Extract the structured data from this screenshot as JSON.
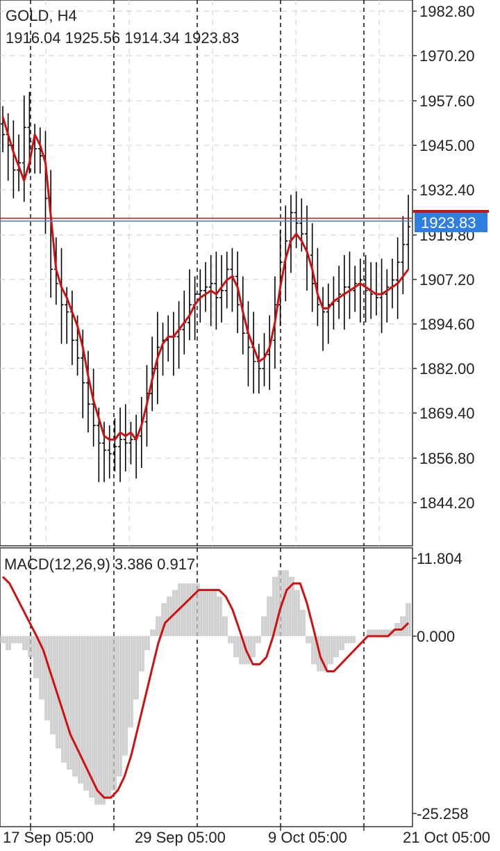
{
  "symbol": "GOLD, H4",
  "ohlc": "1916.04 1925.56 1914.34 1923.83",
  "price_axis": [
    "1982.80",
    "1970.20",
    "1957.60",
    "1945.00",
    "1932.40",
    "1919.80",
    "1907.20",
    "1894.60",
    "1882.00",
    "1869.40",
    "1856.80",
    "1844.20"
  ],
  "current_price": "1923.83",
  "macd": {
    "label": "MACD(12,26,9) 3.386 0.917",
    "axis": [
      "11.804",
      "0.000",
      "-25.258"
    ]
  },
  "time_axis": [
    "17 Sep 05:00",
    "29 Sep 05:00",
    "9 Oct 05:00",
    "21 Oct 05:00"
  ],
  "colors": {
    "bars": "#000000",
    "ma": "#d01010",
    "grid": "#cfcfcf",
    "bid_line": "#3b7fd6",
    "ask_line": "#c01818",
    "price_tag_bg": "#2f7fe0",
    "histogram": "#c4c4c4",
    "signal": "#d01010"
  },
  "chart_data": [
    {
      "type": "line",
      "title": "GOLD, H4",
      "y_range": [
        1840,
        1985
      ],
      "series": [
        {
          "values": [
            1953,
            1948,
            1943,
            1939,
            1935,
            1940,
            1948,
            1945,
            1940,
            1925,
            1910,
            1905,
            1902,
            1898,
            1894,
            1888,
            1880,
            1873,
            1868,
            1863,
            1862,
            1862,
            1864,
            1863,
            1864,
            1862,
            1866,
            1872,
            1879,
            1885,
            1889,
            1891,
            1891,
            1893,
            1895,
            1897,
            1900,
            1902,
            1903,
            1904,
            1903,
            1905,
            1907,
            1908,
            1905,
            1898,
            1892,
            1888,
            1884,
            1885,
            1888,
            1895,
            1905,
            1913,
            1918,
            1920,
            1918,
            1915,
            1910,
            1903,
            1899,
            1899,
            1901,
            1902,
            1903,
            1904,
            1905,
            1906,
            1905,
            1904,
            1903,
            1903,
            1904,
            1905,
            1906,
            1908,
            1910
          ]
        },
        {
          "values": [
            1948,
            1945,
            1938,
            1940,
            1950,
            1946,
            1944,
            1942,
            1930,
            1910,
            1906,
            1900,
            1898,
            1890,
            1885,
            1878,
            1872,
            1866,
            1861,
            1859,
            1858,
            1860,
            1862,
            1861,
            1862,
            1863,
            1867,
            1875,
            1882,
            1888,
            1890,
            1891,
            1891,
            1893,
            1895,
            1900,
            1903,
            1904,
            1905,
            1906,
            1902,
            1904,
            1910,
            1908,
            1900,
            1892,
            1888,
            1884,
            1882,
            1886,
            1890,
            1900,
            1912,
            1918,
            1926,
            1923,
            1920,
            1914,
            1906,
            1900,
            1898,
            1900,
            1901,
            1903,
            1905,
            1904,
            1906,
            1907,
            1904,
            1903,
            1902,
            1903,
            1905,
            1907,
            1912,
            1917,
            1922
          ]
        }
      ]
    },
    {
      "type": "bar",
      "title": "MACD(12,26,9) 3.386 0.917",
      "y_range": [
        -25.258,
        11.804
      ],
      "histogram": [
        -1,
        -2,
        -1,
        -1,
        -2,
        -3,
        -6,
        -9,
        -12,
        -14,
        -16,
        -18,
        -19,
        -20,
        -21,
        -22,
        -23,
        -24,
        -24,
        -23,
        -22,
        -20,
        -17,
        -13,
        -9,
        -5,
        -2,
        1,
        3,
        5,
        6,
        7,
        8,
        8,
        8,
        8,
        7,
        7,
        7,
        6,
        3,
        -1,
        -3,
        -4,
        -4,
        -3,
        -1,
        3,
        6,
        9,
        10,
        10,
        9,
        7,
        4,
        -1,
        -4,
        -5,
        -5,
        -4,
        -3,
        -2,
        -1,
        -1,
        0,
        0,
        1,
        1,
        1,
        1,
        1,
        2,
        3,
        5
      ],
      "signal": [
        9,
        8,
        6,
        4,
        2,
        0,
        -2,
        -5,
        -8,
        -11,
        -14,
        -16,
        -18,
        -20,
        -22,
        -23,
        -23,
        -22,
        -20,
        -17,
        -13,
        -9,
        -5,
        -1,
        2,
        3,
        4,
        5,
        6,
        7,
        7,
        7,
        7,
        6,
        4,
        1,
        -2,
        -4,
        -4,
        -3,
        0,
        4,
        7,
        8,
        8,
        5,
        1,
        -3,
        -5,
        -5,
        -4,
        -3,
        -2,
        -1,
        0,
        0,
        0,
        0,
        1,
        1,
        2
      ]
    }
  ]
}
